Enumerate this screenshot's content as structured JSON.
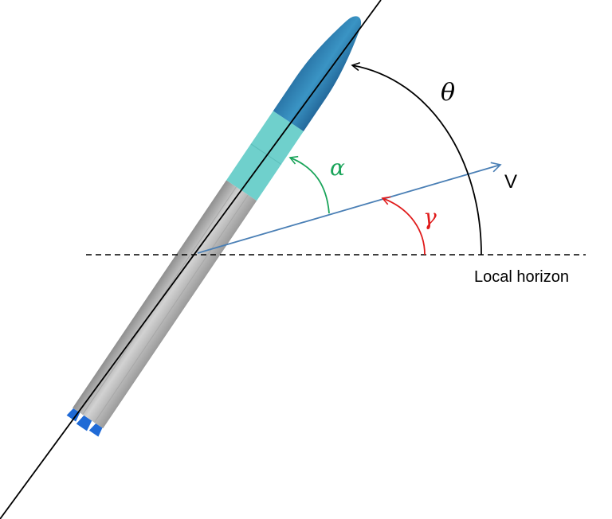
{
  "diagram": {
    "angles": {
      "theta": {
        "symbol": "θ",
        "meaning": "pitch angle",
        "color": "#000000"
      },
      "alpha": {
        "symbol": "α",
        "meaning": "angle of attack",
        "color": "#1aa45a"
      },
      "gamma": {
        "symbol": "γ",
        "meaning": "flight path angle",
        "color": "#e01b1b"
      }
    },
    "labels": {
      "velocity": "V",
      "horizon": "Local horizon"
    },
    "colors": {
      "velocity_vector": "#4a7fb5",
      "rocket_body": "#b9b9b9",
      "interstage": "#6fd0cc",
      "payload_fairing": "#2f86b6",
      "engine_nozzles": "#1f6ad6",
      "axis_line": "#000000",
      "horizon_line": "#000000"
    }
  }
}
